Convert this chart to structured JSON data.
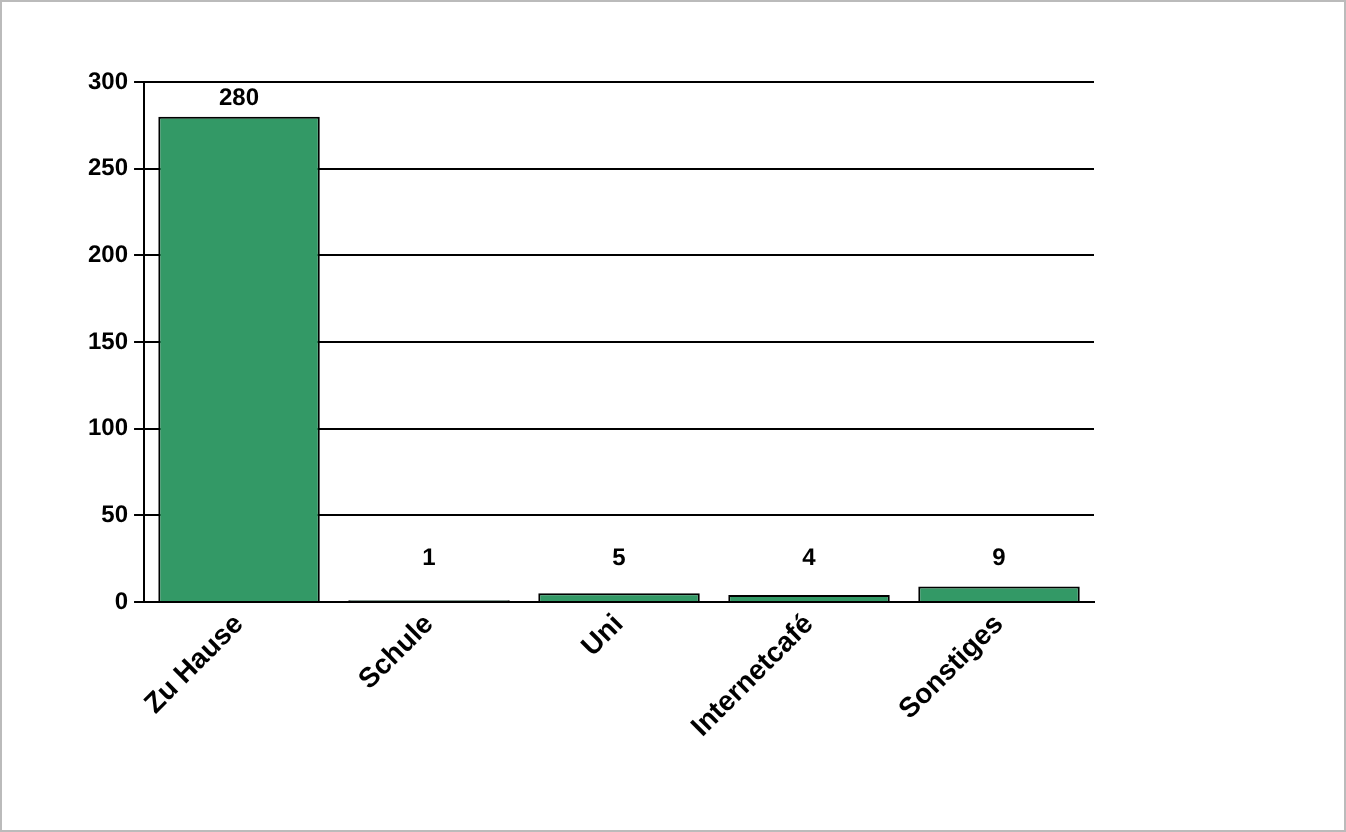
{
  "chart_data": {
    "type": "bar",
    "categories": [
      "Zu Hause",
      "Schule",
      "Uni",
      "Internetcafé",
      "Sonstiges"
    ],
    "values": [
      280,
      1,
      5,
      4,
      9
    ],
    "color": "#339966",
    "ylim": [
      0,
      300
    ],
    "yticks": [
      0,
      50,
      100,
      150,
      200,
      250,
      300
    ],
    "grid": "y",
    "data_labels": true,
    "legend": false
  }
}
